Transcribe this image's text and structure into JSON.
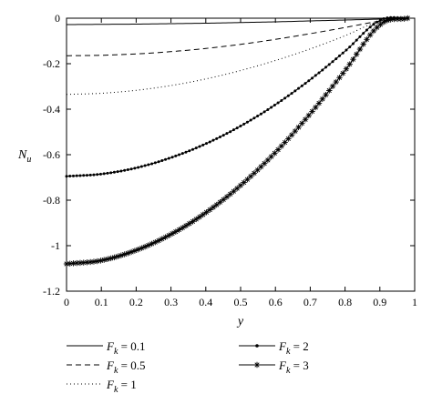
{
  "chart_data": {
    "type": "line",
    "xlabel": "y",
    "ylabel": "N_u",
    "xlim": [
      0,
      1
    ],
    "ylim": [
      -1.2,
      0
    ],
    "xticks": [
      0,
      0.1,
      0.2,
      0.3,
      0.4,
      0.5,
      0.6,
      0.7,
      0.8,
      0.9,
      1
    ],
    "xtick_labels": [
      "0",
      "0.1",
      "0.2",
      "0.3",
      "0.4",
      "0.5",
      "0.6",
      "0.7",
      "0.8",
      "0.9",
      "1"
    ],
    "yticks": [
      0,
      -0.2,
      -0.4,
      -0.6,
      -0.8,
      -1,
      -1.2
    ],
    "ytick_labels": [
      "0",
      "-0.2",
      "-0.4",
      "-0.6",
      "-0.8",
      "-1",
      "-1.2"
    ],
    "grid": false,
    "legend_position": "below",
    "x": [
      0,
      0.1,
      0.2,
      0.3,
      0.4,
      0.5,
      0.6,
      0.7,
      0.8,
      0.9,
      0.98
    ],
    "series": [
      {
        "name": "F_k = 0.1",
        "style": "solid",
        "marker": "none",
        "color": "#000000",
        "values": [
          -0.028,
          -0.027,
          -0.026,
          -0.024,
          -0.022,
          -0.019,
          -0.016,
          -0.012,
          -0.008,
          -0.004,
          0
        ]
      },
      {
        "name": "F_k = 0.5",
        "style": "dashed",
        "marker": "none",
        "color": "#000000",
        "values": [
          -0.165,
          -0.163,
          -0.157,
          -0.147,
          -0.133,
          -0.115,
          -0.093,
          -0.068,
          -0.041,
          -0.013,
          0
        ]
      },
      {
        "name": "F_k = 1",
        "style": "dotted",
        "marker": "none",
        "color": "#000000",
        "values": [
          -0.335,
          -0.33,
          -0.317,
          -0.296,
          -0.267,
          -0.23,
          -0.186,
          -0.135,
          -0.077,
          -0.013,
          0
        ]
      },
      {
        "name": "F_k = 2",
        "style": "solid",
        "marker": "dot",
        "color": "#000000",
        "values": [
          -0.695,
          -0.685,
          -0.658,
          -0.613,
          -0.552,
          -0.474,
          -0.38,
          -0.27,
          -0.145,
          -0.01,
          0
        ]
      },
      {
        "name": "F_k = 3",
        "style": "solid",
        "marker": "asterisk",
        "color": "#000000",
        "values": [
          -1.08,
          -1.065,
          -1.02,
          -0.95,
          -0.855,
          -0.735,
          -0.59,
          -0.42,
          -0.23,
          -0.03,
          0
        ]
      }
    ]
  },
  "legend": {
    "items": [
      {
        "symbol": "F",
        "sub": "k",
        "rest": " = 0.1"
      },
      {
        "symbol": "F",
        "sub": "k",
        "rest": " = 0.5"
      },
      {
        "symbol": "F",
        "sub": "k",
        "rest": " = 1"
      },
      {
        "symbol": "F",
        "sub": "k",
        "rest": " = 2"
      },
      {
        "symbol": "F",
        "sub": "k",
        "rest": " = 3"
      }
    ]
  },
  "axes": {
    "xlabel": "y",
    "ylabel_main": "N",
    "ylabel_sub": "u"
  }
}
